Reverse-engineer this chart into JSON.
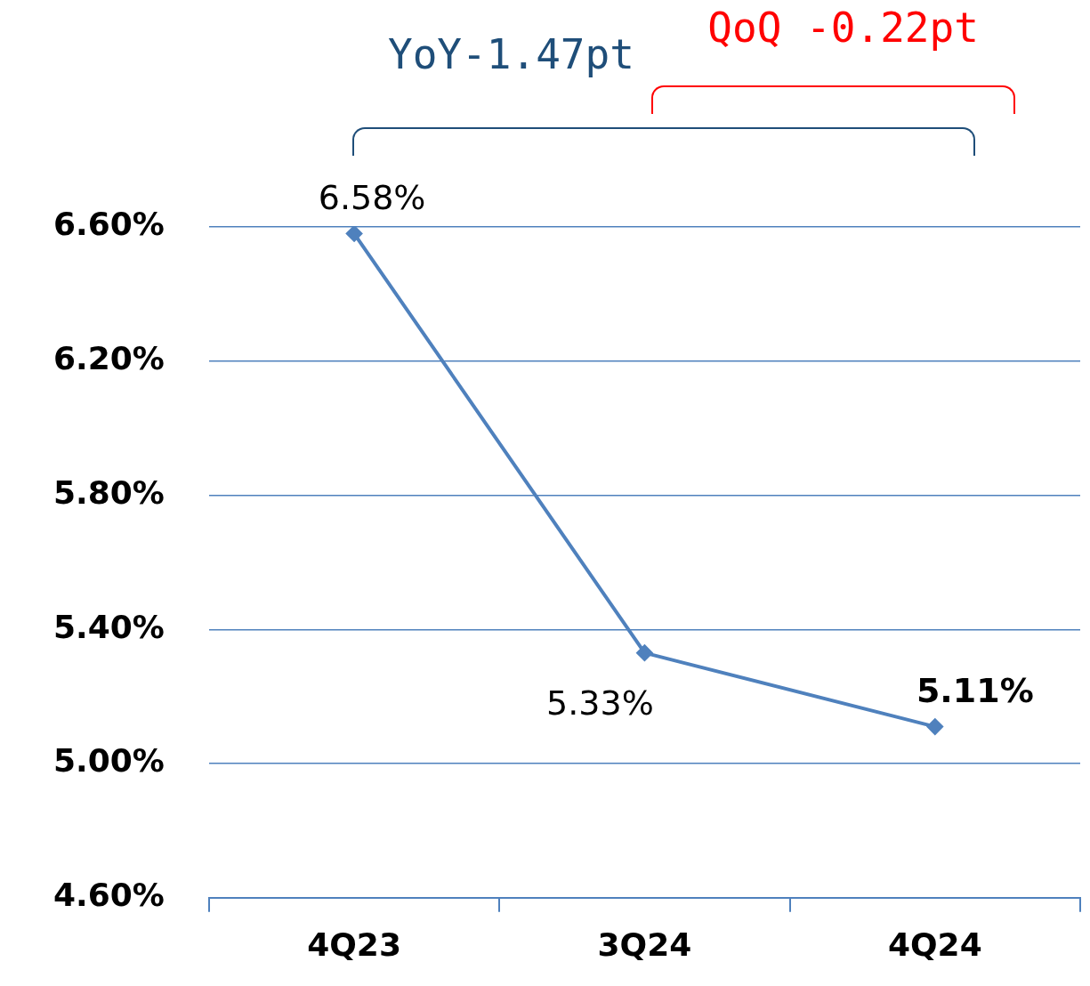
{
  "chart_data": {
    "type": "line",
    "categories": [
      "4Q23",
      "3Q24",
      "4Q24"
    ],
    "series": [
      {
        "color": "#4f81bd",
        "values": [
          6.58,
          5.33,
          5.11
        ],
        "value_labels": [
          "6.58%",
          "5.33%",
          "5.11%"
        ]
      }
    ],
    "ylim": [
      4.6,
      6.6
    ],
    "yticks": [
      {
        "value": 4.6,
        "label": "4.60%"
      },
      {
        "value": 5.0,
        "label": "5.00%"
      },
      {
        "value": 5.4,
        "label": "5.40%"
      },
      {
        "value": 5.8,
        "label": "5.80%"
      },
      {
        "value": 6.2,
        "label": "6.20%"
      },
      {
        "value": 6.6,
        "label": "6.60%"
      }
    ],
    "annotations": [
      "YoY-1.47pt",
      "QoQ -0.22pt"
    ],
    "grid": "y",
    "legend": false,
    "marker": "diamond",
    "line_style": "solid"
  }
}
